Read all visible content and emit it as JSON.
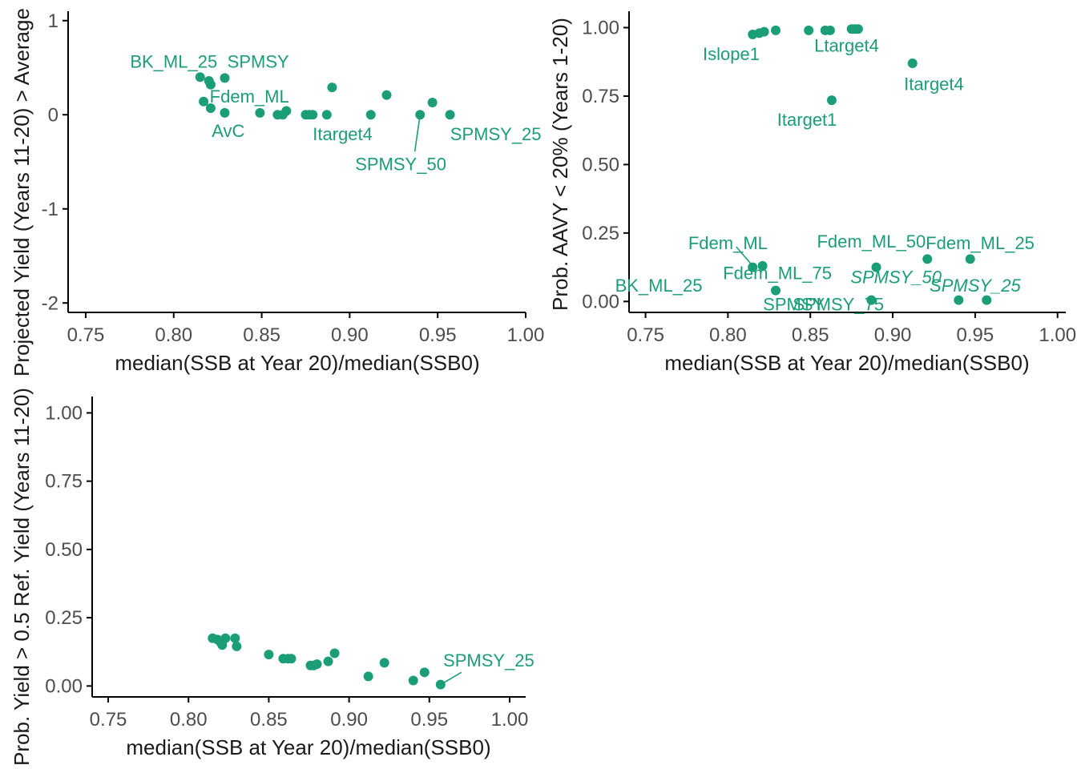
{
  "colors": {
    "accent": "#1b9e77",
    "axis": "#000000",
    "tick_text": "#4d4d4d",
    "title_text": "#1a1a1a"
  },
  "chart_data": [
    {
      "type": "scatter",
      "xlabel": "median(SSB at Year 20)/median(SSB0)",
      "ylabel": "Projected Yield (Years 11-20) > Average",
      "xlim": [
        0.74,
        1.0
      ],
      "ylim": [
        -2.1,
        1.1
      ],
      "xticks": [
        "0.75",
        "0.80",
        "0.85",
        "0.90",
        "0.95",
        "1.00"
      ],
      "yticks": [
        "1",
        "0",
        "-1",
        "-2"
      ],
      "grid": false,
      "points": [
        {
          "x": 0.815,
          "y": 0.4
        },
        {
          "x": 0.817,
          "y": 0.14
        },
        {
          "x": 0.82,
          "y": 0.36
        },
        {
          "x": 0.821,
          "y": 0.32
        },
        {
          "x": 0.821,
          "y": 0.07
        },
        {
          "x": 0.829,
          "y": 0.39
        },
        {
          "x": 0.829,
          "y": 0.02
        },
        {
          "x": 0.849,
          "y": 0.02
        },
        {
          "x": 0.859,
          "y": 0.0
        },
        {
          "x": 0.862,
          "y": 0.0
        },
        {
          "x": 0.864,
          "y": 0.04
        },
        {
          "x": 0.875,
          "y": 0.0
        },
        {
          "x": 0.877,
          "y": 0.0
        },
        {
          "x": 0.879,
          "y": 0.0
        },
        {
          "x": 0.887,
          "y": 0.0
        },
        {
          "x": 0.89,
          "y": 0.29
        },
        {
          "x": 0.912,
          "y": 0.0
        },
        {
          "x": 0.921,
          "y": 0.21
        },
        {
          "x": 0.94,
          "y": 0.0
        },
        {
          "x": 0.947,
          "y": 0.13
        },
        {
          "x": 0.957,
          "y": 0.0
        }
      ],
      "labels": [
        {
          "text": "BK_ML_25",
          "x": 0.8,
          "y": 0.57,
          "italic": false
        },
        {
          "text": "SPMSY",
          "x": 0.848,
          "y": 0.57,
          "italic": false
        },
        {
          "text": "Fdem_ML",
          "x": 0.843,
          "y": 0.2,
          "italic": false
        },
        {
          "text": "AvC",
          "x": 0.831,
          "y": -0.17,
          "italic": false
        },
        {
          "text": "Itarget4",
          "x": 0.896,
          "y": -0.2,
          "italic": false
        },
        {
          "text": "SPMSY_50",
          "x": 0.929,
          "y": -0.52,
          "italic": false,
          "lx": 0.937,
          "ly": -0.39,
          "tx": 0.94,
          "ty": 0.0
        },
        {
          "text": "SPMSY_25",
          "x": 0.983,
          "y": -0.2,
          "italic": false
        }
      ]
    },
    {
      "type": "scatter",
      "xlabel": "median(SSB at Year 20)/median(SSB0)",
      "ylabel": "Prob. AAVY < 20% (Years 1-20)",
      "xlim": [
        0.74,
        1.005
      ],
      "ylim": [
        -0.04,
        1.06
      ],
      "xticks": [
        "0.75",
        "0.80",
        "0.85",
        "0.90",
        "0.95",
        "1.00"
      ],
      "yticks": [
        "1.00",
        "0.75",
        "0.50",
        "0.25",
        "0.00"
      ],
      "grid": false,
      "points": [
        {
          "x": 0.815,
          "y": 0.975
        },
        {
          "x": 0.819,
          "y": 0.98
        },
        {
          "x": 0.822,
          "y": 0.985
        },
        {
          "x": 0.829,
          "y": 0.99
        },
        {
          "x": 0.849,
          "y": 0.99
        },
        {
          "x": 0.859,
          "y": 0.99
        },
        {
          "x": 0.862,
          "y": 0.99
        },
        {
          "x": 0.875,
          "y": 0.995
        },
        {
          "x": 0.877,
          "y": 0.995
        },
        {
          "x": 0.879,
          "y": 0.995
        },
        {
          "x": 0.863,
          "y": 0.735
        },
        {
          "x": 0.912,
          "y": 0.87
        },
        {
          "x": 0.815,
          "y": 0.125
        },
        {
          "x": 0.821,
          "y": 0.13
        },
        {
          "x": 0.829,
          "y": 0.04
        },
        {
          "x": 0.887,
          "y": 0.005
        },
        {
          "x": 0.89,
          "y": 0.125
        },
        {
          "x": 0.921,
          "y": 0.155
        },
        {
          "x": 0.94,
          "y": 0.005
        },
        {
          "x": 0.947,
          "y": 0.155
        },
        {
          "x": 0.957,
          "y": 0.005
        }
      ],
      "labels": [
        {
          "text": "Islope1",
          "x": 0.802,
          "y": 0.905,
          "italic": false
        },
        {
          "text": "Ltarget4",
          "x": 0.872,
          "y": 0.935,
          "italic": false
        },
        {
          "text": "Itarget4",
          "x": 0.925,
          "y": 0.795,
          "italic": false
        },
        {
          "text": "Itarget1",
          "x": 0.848,
          "y": 0.665,
          "italic": false
        },
        {
          "text": "Fdem_ML",
          "x": 0.8,
          "y": 0.215,
          "italic": false,
          "lx": 0.805,
          "ly": 0.2,
          "tx": 0.815,
          "ty": 0.13
        },
        {
          "text": "Fdem_ML_50",
          "x": 0.887,
          "y": 0.22,
          "italic": false
        },
        {
          "text": "Fdem_ML_25",
          "x": 0.953,
          "y": 0.215,
          "italic": false
        },
        {
          "text": "Fdem_ML_75",
          "x": 0.83,
          "y": 0.105,
          "italic": false
        },
        {
          "text": "BK_ML_25",
          "x": 0.758,
          "y": 0.06,
          "italic": false
        },
        {
          "text": "SPMSY",
          "x": 0.84,
          "y": -0.01,
          "italic": false
        },
        {
          "text": "SPMSY_75",
          "x": 0.867,
          "y": -0.01,
          "italic": false
        },
        {
          "text": "SPMSY_50",
          "x": 0.902,
          "y": 0.09,
          "italic": true
        },
        {
          "text": "SPMSY_25",
          "x": 0.95,
          "y": 0.06,
          "italic": true
        }
      ]
    },
    {
      "type": "scatter",
      "xlabel": "median(SSB at Year 20)/median(SSB0)",
      "ylabel": "Prob. Yield > 0.5 Ref. Yield (Years 11-20)",
      "xlim": [
        0.74,
        1.01
      ],
      "ylim": [
        -0.04,
        1.06
      ],
      "xticks": [
        "0.75",
        "0.80",
        "0.85",
        "0.90",
        "0.95",
        "1.00"
      ],
      "yticks": [
        "1.00",
        "0.75",
        "0.50",
        "0.25",
        "0.00"
      ],
      "grid": false,
      "points": [
        {
          "x": 0.815,
          "y": 0.175
        },
        {
          "x": 0.818,
          "y": 0.17
        },
        {
          "x": 0.82,
          "y": 0.16
        },
        {
          "x": 0.821,
          "y": 0.15
        },
        {
          "x": 0.823,
          "y": 0.175
        },
        {
          "x": 0.829,
          "y": 0.175
        },
        {
          "x": 0.83,
          "y": 0.145
        },
        {
          "x": 0.85,
          "y": 0.115
        },
        {
          "x": 0.859,
          "y": 0.1
        },
        {
          "x": 0.862,
          "y": 0.1
        },
        {
          "x": 0.864,
          "y": 0.1
        },
        {
          "x": 0.876,
          "y": 0.075
        },
        {
          "x": 0.878,
          "y": 0.075
        },
        {
          "x": 0.88,
          "y": 0.08
        },
        {
          "x": 0.887,
          "y": 0.09
        },
        {
          "x": 0.891,
          "y": 0.12
        },
        {
          "x": 0.912,
          "y": 0.035
        },
        {
          "x": 0.922,
          "y": 0.085
        },
        {
          "x": 0.94,
          "y": 0.02
        },
        {
          "x": 0.947,
          "y": 0.05
        },
        {
          "x": 0.957,
          "y": 0.005
        }
      ],
      "labels": [
        {
          "text": "SPMSY_25",
          "x": 0.987,
          "y": 0.095,
          "italic": false,
          "lx": 0.97,
          "ly": 0.05,
          "tx": 0.957,
          "ty": 0.005
        }
      ]
    }
  ]
}
